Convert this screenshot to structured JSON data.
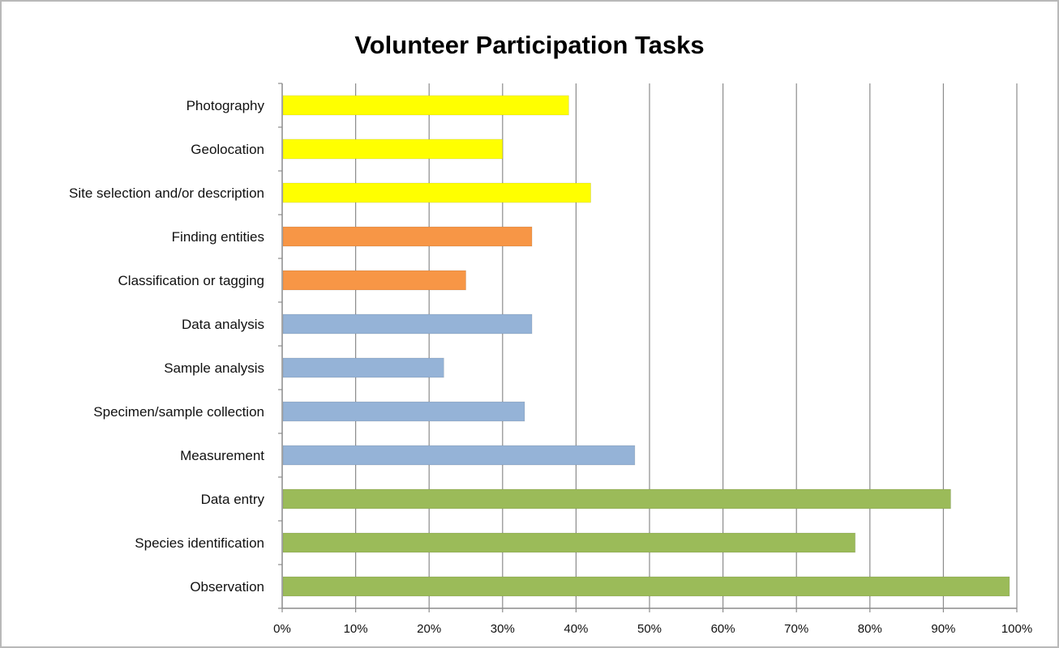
{
  "chart_data": {
    "type": "bar",
    "orientation": "horizontal",
    "title": "Volunteer Participation Tasks",
    "xlabel": "",
    "ylabel": "",
    "categories": [
      "Photography",
      "Geolocation",
      "Site selection and/or description",
      "Finding entities",
      "Classification or tagging",
      "Data analysis",
      "Sample analysis",
      "Specimen/sample collection",
      "Measurement",
      "Data entry",
      "Species identification",
      "Observation"
    ],
    "values": [
      0.39,
      0.3,
      0.42,
      0.34,
      0.25,
      0.34,
      0.22,
      0.33,
      0.48,
      0.91,
      0.78,
      0.99
    ],
    "bar_colors": [
      "#ffff00",
      "#ffff00",
      "#ffff00",
      "#f79646",
      "#f79646",
      "#95b3d7",
      "#95b3d7",
      "#95b3d7",
      "#95b3d7",
      "#9bbb59",
      "#9bbb59",
      "#9bbb59"
    ],
    "xlim": [
      0,
      1
    ],
    "x_ticks": [
      0,
      0.1,
      0.2,
      0.3,
      0.4,
      0.5,
      0.6,
      0.7,
      0.8,
      0.9,
      1.0
    ],
    "x_tick_labels": [
      "0%",
      "10%",
      "20%",
      "30%",
      "40%",
      "50%",
      "60%",
      "70%",
      "80%",
      "90%",
      "100%"
    ],
    "grid": "vertical",
    "legend": "none"
  }
}
